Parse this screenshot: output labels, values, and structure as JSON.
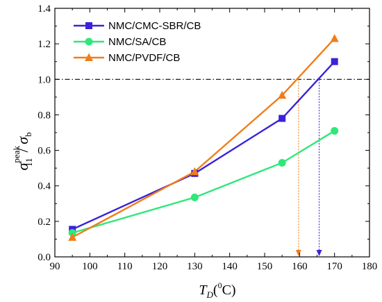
{
  "chart_data": {
    "type": "line",
    "xlabel": {
      "main": "T",
      "sub": "D",
      "unit_open": "(",
      "unit_sup": "0",
      "unit_close": "C)"
    },
    "ylabel": {
      "main": "σ",
      "sub": "11",
      "sup": "peak",
      "slash": "/ ",
      "denom": "σ",
      "denom_sub": "b"
    },
    "xlim": [
      90,
      180
    ],
    "ylim": [
      0.0,
      1.4
    ],
    "xticks": [
      "90",
      "100",
      "110",
      "120",
      "130",
      "140",
      "150",
      "160",
      "170",
      "180"
    ],
    "yticks": [
      "0.0",
      "0.2",
      "0.4",
      "0.6",
      "0.8",
      "1.0",
      "1.2",
      "1.4"
    ],
    "x": [
      95,
      130,
      155,
      170
    ],
    "series": [
      {
        "name": "NMC/CMC-SBR/CB",
        "color": "#3a22d9",
        "marker": "square",
        "values": [
          0.155,
          0.47,
          0.78,
          1.1
        ]
      },
      {
        "name": "NMC/SA/CB",
        "color": "#2ee87a",
        "marker": "circle",
        "values": [
          0.135,
          0.335,
          0.53,
          0.71
        ]
      },
      {
        "name": "NMC/PVDF/CB",
        "color": "#f07d1a",
        "marker": "triangle",
        "values": [
          0.11,
          0.48,
          0.91,
          1.23
        ]
      }
    ],
    "reference_line": {
      "y": 1.0,
      "style": "dash-dot",
      "color": "#000000"
    },
    "intercepts": [
      {
        "x": 159.7,
        "color": "#f07d1a"
      },
      {
        "x": 165.6,
        "color": "#3a22d9"
      }
    ],
    "legend_position": "top-left",
    "grid": false
  }
}
